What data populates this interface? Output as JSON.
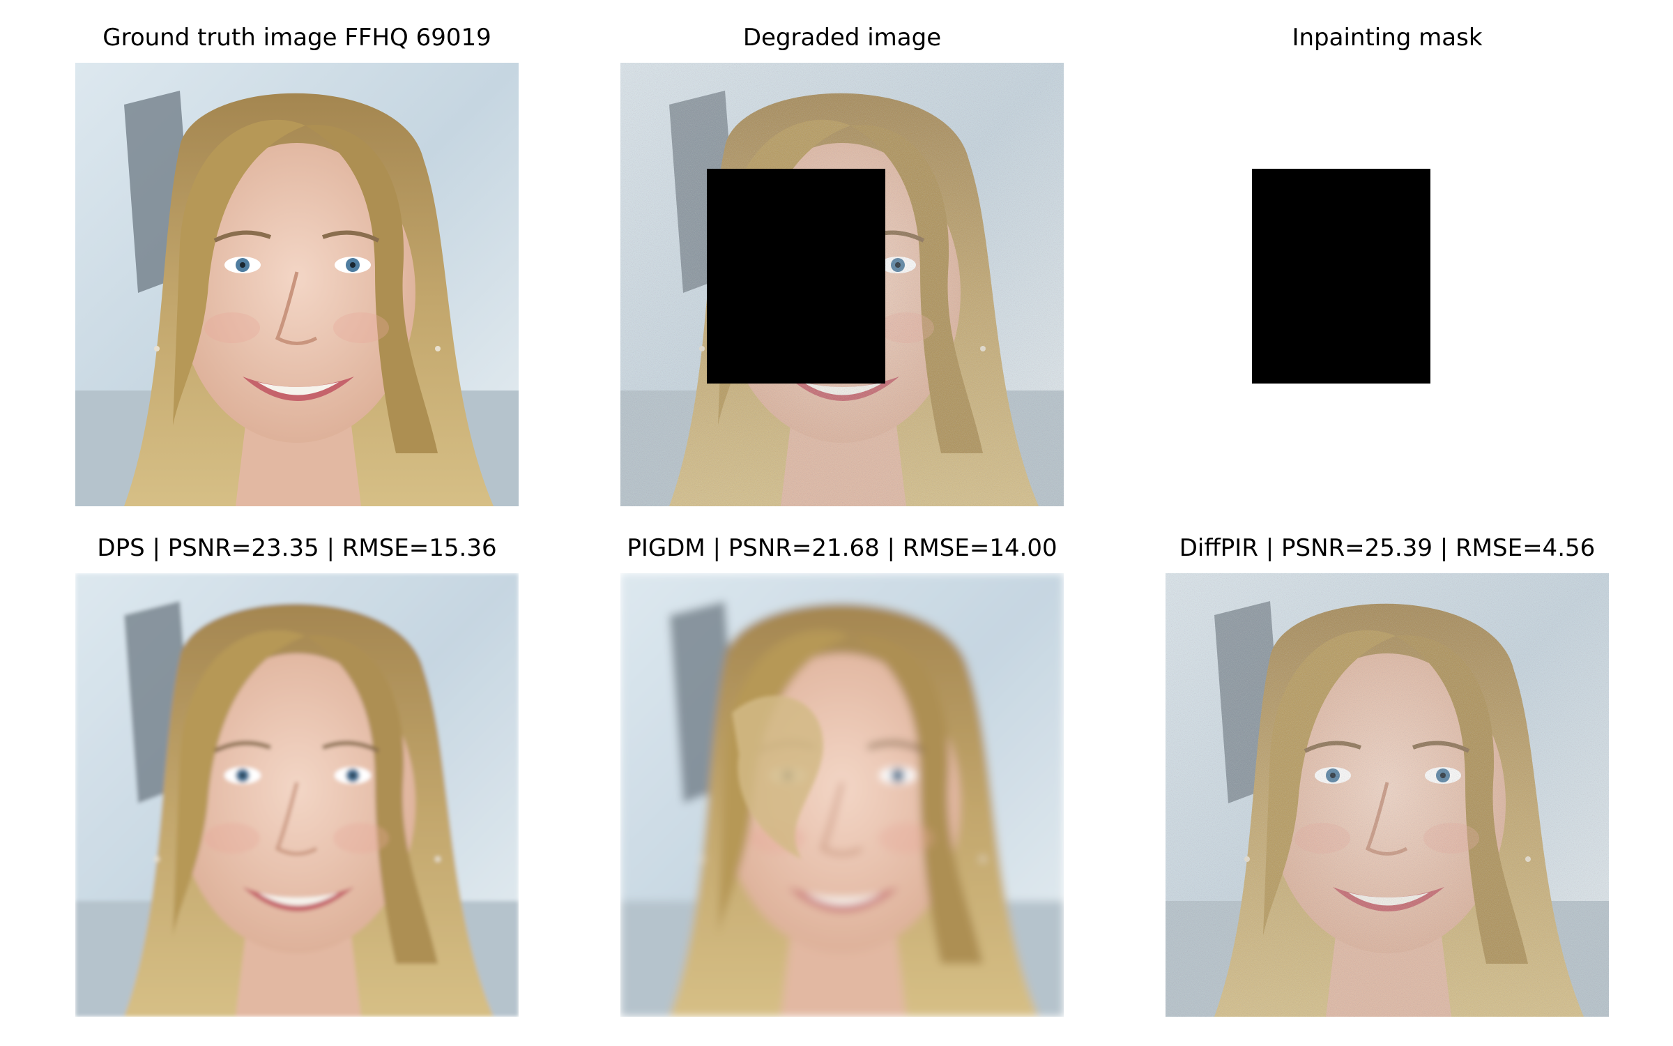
{
  "figure": {
    "panels": [
      {
        "id": "gt",
        "title": "Ground truth image FFHQ 69019"
      },
      {
        "id": "degraded",
        "title": "Degraded image"
      },
      {
        "id": "mask",
        "title": "Inpainting mask"
      },
      {
        "id": "dps",
        "title": "DPS | PSNR=23.35 | RMSE=15.36"
      },
      {
        "id": "pigdm",
        "title": "PIGDM | PSNR=21.68 | RMSE=14.00"
      },
      {
        "id": "diffpir",
        "title": "DiffPIR | PSNR=25.39 | RMSE=4.56"
      }
    ]
  },
  "colors": {
    "background": "#ffffff",
    "mask_fill": "#000000",
    "hair": "#b89a5c",
    "skin": "#ecc9b6",
    "backdrop": "#cfdde6"
  }
}
